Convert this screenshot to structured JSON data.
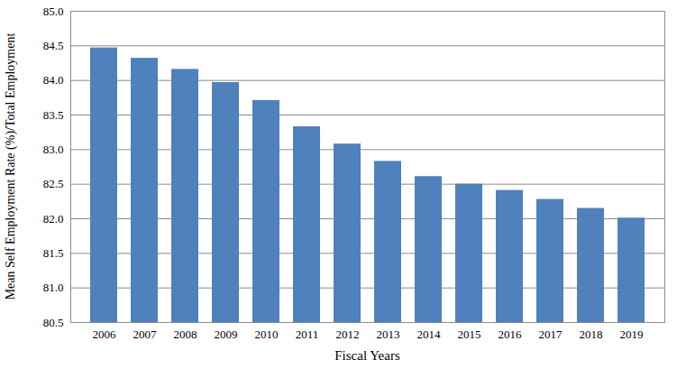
{
  "chart_data": {
    "type": "bar",
    "x_label": "Fiscal Years",
    "y_label": "Mean Self Employment Rate (%)/Total Employment",
    "categories": [
      "2006",
      "2007",
      "2008",
      "2009",
      "2010",
      "2011",
      "2012",
      "2013",
      "2014",
      "2015",
      "2016",
      "2017",
      "2018",
      "2019"
    ],
    "values": [
      84.47,
      84.32,
      84.16,
      83.97,
      83.71,
      83.33,
      83.08,
      82.83,
      82.61,
      82.5,
      82.41,
      82.28,
      82.15,
      82.01
    ],
    "color": "#4f81bd",
    "ylim": [
      80.5,
      85.0
    ],
    "yticks": [
      80.5,
      {
        "value": 81,
        "label": "81.0"
      },
      81.5,
      {
        "value": 82,
        "label": "82.0"
      },
      82.5,
      {
        "value": 83,
        "label": "83.0"
      },
      83.5,
      {
        "value": 84,
        "label": "84.0"
      },
      84.5,
      {
        "value": 85,
        "label": "85.0"
      }
    ],
    "grid": true
  }
}
